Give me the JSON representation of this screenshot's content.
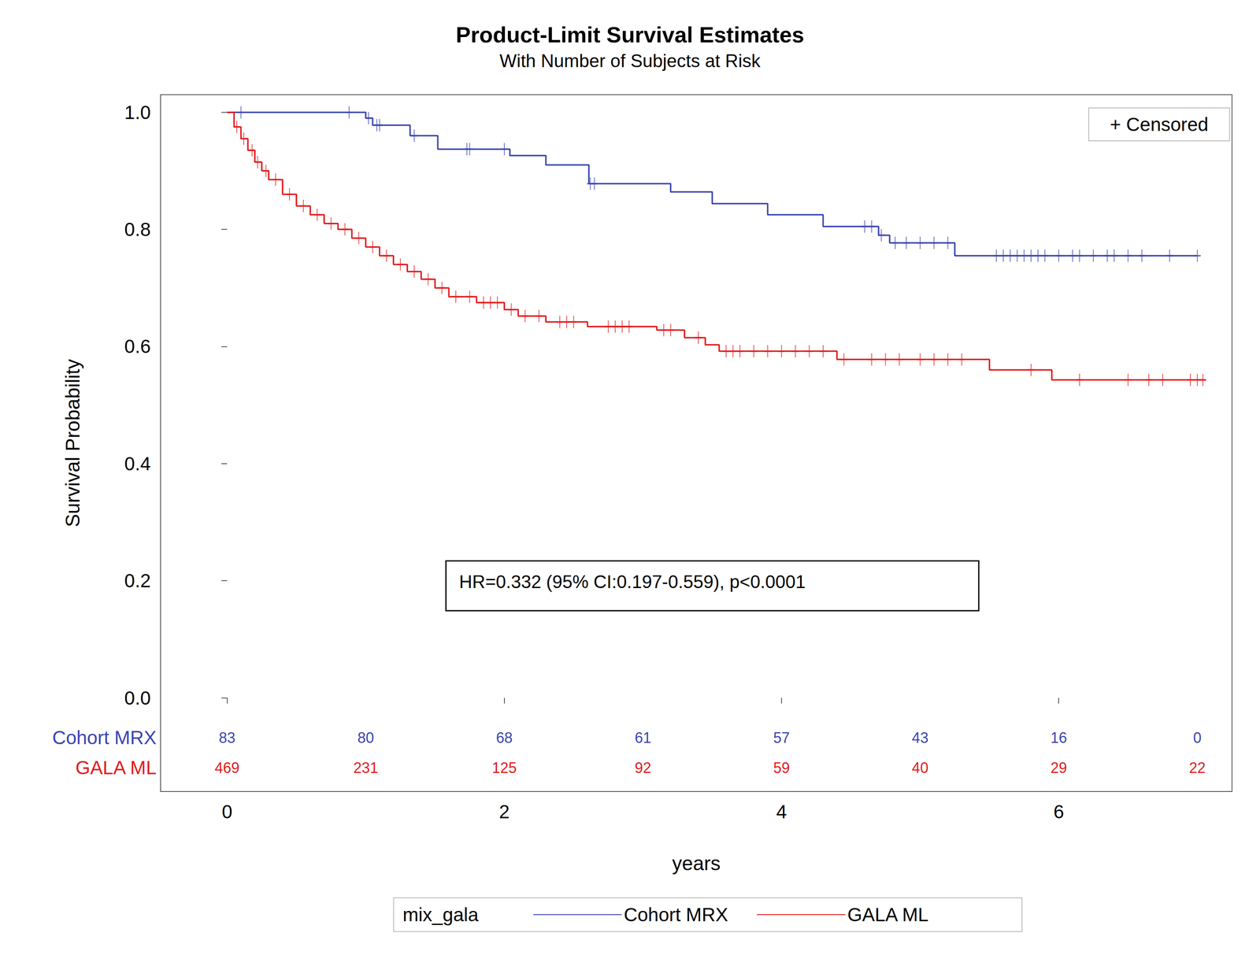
{
  "chart_data": {
    "type": "line",
    "title": "Product-Limit Survival Estimates",
    "subtitle": "With Number of Subjects at Risk",
    "x_label": "years",
    "y_label": "Survival Probability",
    "xlim": [
      -0.48,
      7.25
    ],
    "xticks": [
      0,
      2,
      4,
      6
    ],
    "ylim": [
      -0.16,
      1.03
    ],
    "yticks": [
      {
        "value": 0,
        "label": "0.0"
      },
      0.2,
      0.4,
      0.6,
      0.8,
      {
        "value": 1,
        "label": "1.0"
      }
    ],
    "grid": false,
    "legend": "bottom",
    "legend_title": "mix_gala",
    "censored_label": "+ Censored",
    "annotation": "HR=0.332 (95% CI:0.197-0.559), p<0.0001",
    "at_risk_x": [
      0,
      1,
      2,
      3,
      4,
      5,
      6,
      7
    ],
    "series": [
      {
        "name": "Cohort MRX",
        "color": "#3a46b0",
        "line_style": "step",
        "x": [
          0,
          1.0,
          1.05,
          1.32,
          1.52,
          2.04,
          2.3,
          2.61,
          3.2,
          3.5,
          3.9,
          4.3,
          4.7,
          4.78,
          5.25,
          7.0
        ],
        "values": [
          1.0,
          0.99,
          0.978,
          0.96,
          0.937,
          0.926,
          0.91,
          0.878,
          0.864,
          0.844,
          0.825,
          0.805,
          0.79,
          0.777,
          0.755,
          0.755
        ],
        "censored": {
          "x": [
            0.1,
            0.88,
            1.02,
            1.08,
            1.1,
            1.35,
            1.73,
            1.75,
            2.0,
            2.62,
            2.65,
            4.6,
            4.65,
            4.72,
            4.82,
            4.9,
            5.0,
            5.1,
            5.2,
            5.55,
            5.6,
            5.65,
            5.7,
            5.75,
            5.8,
            5.85,
            5.9,
            6.0,
            6.1,
            6.15,
            6.25,
            6.35,
            6.4,
            6.5,
            6.6,
            6.8,
            7.0
          ],
          "values": [
            1.0,
            1.0,
            0.99,
            0.978,
            0.978,
            0.96,
            0.937,
            0.937,
            0.937,
            0.878,
            0.878,
            0.805,
            0.805,
            0.79,
            0.777,
            0.777,
            0.777,
            0.777,
            0.777,
            0.755,
            0.755,
            0.755,
            0.755,
            0.755,
            0.755,
            0.755,
            0.755,
            0.755,
            0.755,
            0.755,
            0.755,
            0.755,
            0.755,
            0.755,
            0.755,
            0.755,
            0.755
          ]
        },
        "at_risk": [
          83,
          80,
          68,
          61,
          57,
          43,
          16,
          0
        ]
      },
      {
        "name": "GALA ML",
        "color": "#e41a1c",
        "line_style": "step",
        "x": [
          0,
          0.05,
          0.1,
          0.15,
          0.2,
          0.25,
          0.3,
          0.4,
          0.5,
          0.6,
          0.7,
          0.8,
          0.9,
          1.0,
          1.1,
          1.2,
          1.3,
          1.4,
          1.5,
          1.6,
          1.8,
          2.0,
          2.1,
          2.3,
          2.6,
          3.1,
          3.3,
          3.45,
          3.55,
          4.4,
          5.5,
          5.95,
          7.06
        ],
        "values": [
          1.0,
          0.975,
          0.955,
          0.935,
          0.915,
          0.9,
          0.885,
          0.86,
          0.84,
          0.825,
          0.81,
          0.8,
          0.785,
          0.77,
          0.755,
          0.74,
          0.728,
          0.715,
          0.7,
          0.685,
          0.675,
          0.663,
          0.652,
          0.642,
          0.634,
          0.628,
          0.615,
          0.603,
          0.592,
          0.578,
          0.56,
          0.543,
          0.543
        ],
        "censored": {
          "x": [
            0.07,
            0.12,
            0.18,
            0.22,
            0.28,
            0.35,
            0.45,
            0.55,
            0.65,
            0.75,
            0.85,
            0.95,
            1.05,
            1.15,
            1.25,
            1.35,
            1.45,
            1.55,
            1.65,
            1.75,
            1.85,
            1.9,
            1.95,
            2.05,
            2.15,
            2.25,
            2.4,
            2.45,
            2.5,
            2.75,
            2.8,
            2.85,
            2.9,
            3.15,
            3.2,
            3.4,
            3.6,
            3.65,
            3.7,
            3.8,
            3.9,
            4.0,
            4.1,
            4.2,
            4.3,
            4.45,
            4.65,
            4.75,
            4.85,
            5.0,
            5.1,
            5.2,
            5.3,
            5.8,
            6.15,
            6.5,
            6.65,
            6.75,
            6.95,
            7.0,
            7.04
          ],
          "values": [
            0.975,
            0.955,
            0.935,
            0.915,
            0.9,
            0.885,
            0.86,
            0.84,
            0.825,
            0.81,
            0.8,
            0.785,
            0.77,
            0.755,
            0.74,
            0.728,
            0.715,
            0.7,
            0.685,
            0.685,
            0.675,
            0.675,
            0.675,
            0.663,
            0.652,
            0.652,
            0.642,
            0.642,
            0.642,
            0.634,
            0.634,
            0.634,
            0.634,
            0.628,
            0.628,
            0.615,
            0.592,
            0.592,
            0.592,
            0.592,
            0.592,
            0.592,
            0.592,
            0.592,
            0.592,
            0.578,
            0.578,
            0.578,
            0.578,
            0.578,
            0.578,
            0.578,
            0.578,
            0.56,
            0.543,
            0.543,
            0.543,
            0.543,
            0.543,
            0.543,
            0.543
          ]
        },
        "at_risk": [
          469,
          231,
          125,
          92,
          59,
          40,
          29,
          22
        ]
      }
    ]
  }
}
